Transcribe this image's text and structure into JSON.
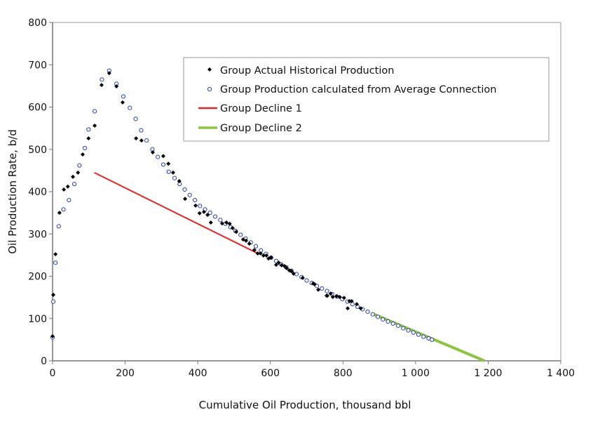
{
  "chart_data": {
    "type": "scatter",
    "title": "",
    "xlabel": "Cumulative Oil Production, thousand bbl",
    "ylabel": "Oil Production Rate, b/d",
    "xlim": [
      0,
      1400
    ],
    "ylim": [
      0,
      800
    ],
    "xticks": [
      "0",
      "200",
      "400",
      "600",
      "800",
      "1 000",
      "1 200",
      "1 400"
    ],
    "yticks": [
      "0",
      "100",
      "200",
      "300",
      "400",
      "500",
      "600",
      "700",
      "800"
    ],
    "grid": false,
    "legend_position": "top-right",
    "colors": {
      "actual": "#000000",
      "calculated": "#2a3fb0",
      "decline1": "#e8262a",
      "decline2": "#8cc63f"
    },
    "series": [
      {
        "name": "Group Actual Historical Production",
        "kind": "scatter-diamond",
        "x": [
          0,
          2,
          8,
          19,
          31,
          42,
          56,
          70,
          83,
          99,
          116,
          135,
          156,
          176,
          193,
          230,
          245,
          276,
          305,
          319,
          332,
          349,
          365,
          394,
          405,
          417,
          427,
          436,
          467,
          479,
          488,
          496,
          506,
          525,
          533,
          542,
          556,
          565,
          573,
          581,
          589,
          595,
          602,
          616,
          623,
          631,
          639,
          645,
          652,
          658,
          664,
          689,
          718,
          722,
          732,
          755,
          757,
          766,
          772,
          782,
          791,
          803,
          813,
          818,
          824,
          838,
          849
        ],
        "y": [
          58,
          156,
          252,
          350,
          405,
          412,
          435,
          445,
          488,
          526,
          556,
          652,
          680,
          649,
          611,
          526,
          521,
          493,
          484,
          466,
          445,
          425,
          383,
          367,
          349,
          352,
          345,
          327,
          325,
          327,
          324,
          314,
          305,
          287,
          284,
          277,
          262,
          254,
          254,
          249,
          249,
          242,
          244,
          227,
          232,
          226,
          224,
          219,
          214,
          212,
          206,
          196,
          183,
          181,
          168,
          154,
          154,
          159,
          151,
          153,
          151,
          149,
          124,
          141,
          141,
          134,
          124
        ]
      },
      {
        "name": "Group Production calculated from Average Connection",
        "kind": "scatter-circle",
        "x": [
          0,
          2,
          8,
          17,
          30,
          45,
          60,
          74,
          89,
          99,
          116,
          136,
          156,
          176,
          195,
          213,
          229,
          244,
          259,
          275,
          290,
          305,
          320,
          336,
          350,
          364,
          378,
          392,
          406,
          420,
          434,
          448,
          462,
          476,
          490,
          504,
          518,
          532,
          546,
          560,
          574,
          588,
          602,
          616,
          630,
          644,
          658,
          672,
          686,
          700,
          714,
          728,
          742,
          756,
          770,
          784,
          798,
          812,
          826,
          840,
          854,
          868,
          882,
          896,
          910,
          924,
          938,
          952,
          966,
          980,
          994,
          1008,
          1022,
          1036,
          1045
        ],
        "y": [
          55,
          140,
          232,
          318,
          358,
          380,
          418,
          462,
          503,
          547,
          590,
          665,
          686,
          655,
          625,
          598,
          572,
          545,
          521,
          500,
          482,
          464,
          447,
          432,
          418,
          405,
          392,
          380,
          366,
          358,
          350,
          341,
          333,
          324,
          316,
          307,
          298,
          289,
          280,
          271,
          261,
          253,
          244,
          236,
          228,
          221,
          213,
          205,
          198,
          190,
          184,
          177,
          171,
          165,
          158,
          152,
          146,
          140,
          134,
          128,
          122,
          116,
          110,
          104,
          98,
          93,
          88,
          83,
          77,
          72,
          67,
          62,
          57,
          53,
          50
        ]
      },
      {
        "name": "Group Decline 1",
        "kind": "line",
        "x": [
          115,
          570
        ],
        "y": [
          445,
          252
        ]
      },
      {
        "name": "Group Decline 2",
        "kind": "line",
        "x": [
          880,
          1190
        ],
        "y": [
          112,
          0
        ]
      }
    ]
  }
}
